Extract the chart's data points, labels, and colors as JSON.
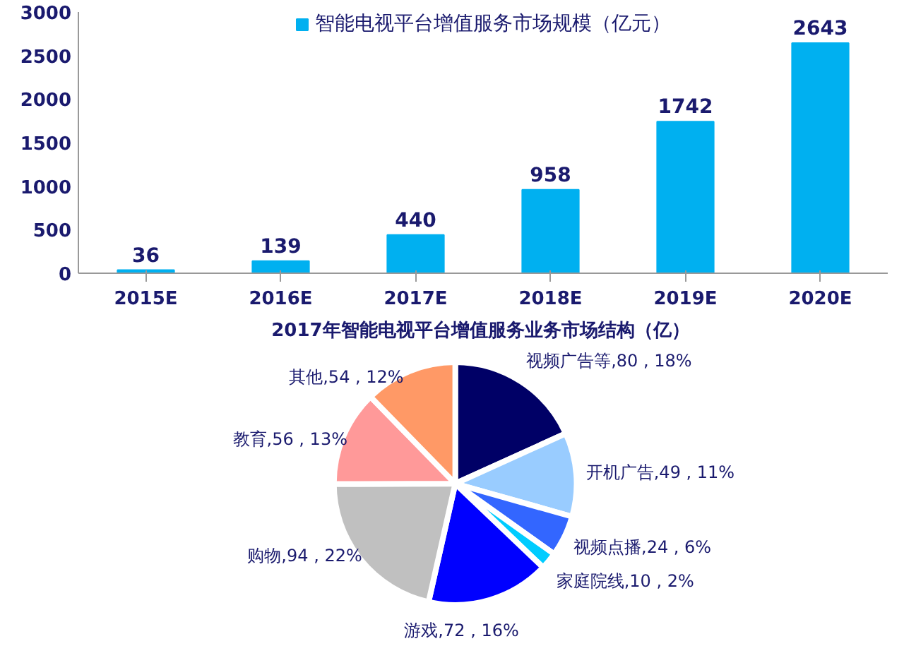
{
  "chart_data": [
    {
      "type": "bar",
      "categories": [
        "2015E",
        "2016E",
        "2017E",
        "2018E",
        "2019E",
        "2020E"
      ],
      "series": [
        {
          "name": "智能电视平台增值服务市场规模（亿元）",
          "color": "#00b0f0",
          "values": [
            36,
            139,
            440,
            958,
            1742,
            2643
          ]
        }
      ],
      "ylim": [
        0,
        3000
      ],
      "yticks": [
        0,
        500,
        1000,
        1500,
        2000,
        2500,
        3000
      ],
      "grid": false,
      "legend": "top",
      "data_labels": true
    },
    {
      "type": "pie",
      "title": "2017年智能电视平台增值服务业务市场结构（亿）",
      "categories": [
        "视频广告等",
        "开机广告",
        "视频点播",
        "家庭院线",
        "游戏",
        "购物",
        "教育",
        "其他"
      ],
      "values": [
        80,
        49,
        24,
        10,
        72,
        94,
        56,
        54
      ],
      "value_labels": [
        "80 , 18%",
        "49 , 11%",
        "24 , 6%",
        "10 , 2%",
        "72 , 16%",
        "94 , 22%",
        "56 , 13%",
        "54 , 12%"
      ],
      "colors": [
        "#000066",
        "#99ccff",
        "#3366ff",
        "#00ccff",
        "#0000ff",
        "#c0c0c0",
        "#ff9999",
        "#ff9966"
      ]
    }
  ]
}
